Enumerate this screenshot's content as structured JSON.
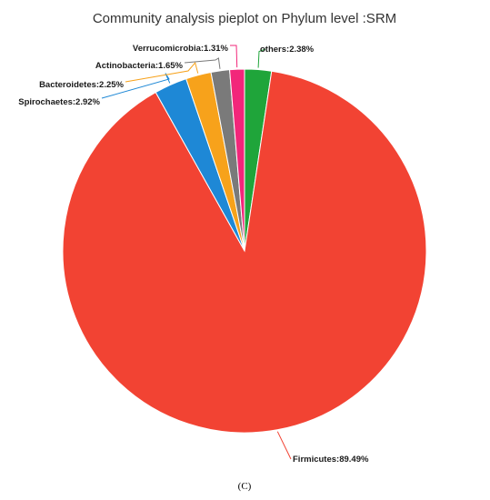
{
  "chart_data": {
    "type": "pie",
    "title": "Community analysis pieplot on Phylum level :SRM",
    "panel_label": "(C)",
    "slices": [
      {
        "name": "others",
        "label": "others:2.38%",
        "value": 2.38,
        "color": "#1fa53a"
      },
      {
        "name": "Firmicutes",
        "label": "Firmicutes:89.49%",
        "value": 89.49,
        "color": "#f24333"
      },
      {
        "name": "Spirochaetes",
        "label": "Spirochaetes:2.92%",
        "value": 2.92,
        "color": "#1e88d6"
      },
      {
        "name": "Bacteroidetes",
        "label": "Bacteroidetes:2.25%",
        "value": 2.25,
        "color": "#f7a21b"
      },
      {
        "name": "Actinobacteria",
        "label": "Actinobacteria:1.65%",
        "value": 1.65,
        "color": "#7a7a7a"
      },
      {
        "name": "Verrucomicrobia",
        "label": "Verrucomicrobia:1.31%",
        "value": 1.31,
        "color": "#f2267a"
      }
    ]
  }
}
